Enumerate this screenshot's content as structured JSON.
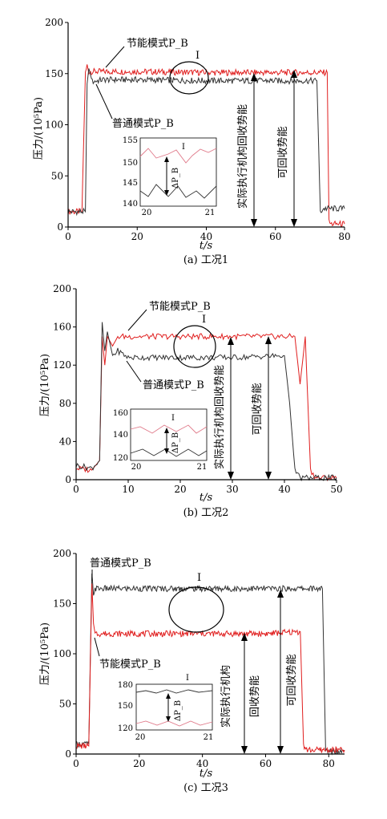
{
  "chart_data": [
    {
      "type": "line",
      "caption": "(a) 工况1",
      "ylabel": "压力/(10⁵Pa)",
      "xlabel": "t/s",
      "xlim": [
        0,
        80
      ],
      "ylim": [
        0,
        200
      ],
      "xticks": [
        "0",
        "20",
        "40",
        "60",
        "80"
      ],
      "yticks": [
        "0",
        "50",
        "100",
        "150",
        "200"
      ],
      "series": [
        {
          "name": "节能模式P_B",
          "color": "#e01e1e",
          "x": [
            0,
            4,
            5,
            5.5,
            6,
            8,
            20,
            40,
            60,
            70,
            75,
            75.5,
            76,
            80
          ],
          "y": [
            15,
            15,
            150,
            158,
            152,
            152,
            152,
            151,
            151,
            151,
            151,
            5,
            3,
            3
          ]
        },
        {
          "name": "普通模式P_B",
          "color": "#333333",
          "x": [
            0,
            5,
            5.5,
            6,
            7,
            10,
            20,
            40,
            60,
            72,
            73,
            74,
            80
          ],
          "y": [
            15,
            15,
            140,
            155,
            142,
            144,
            144,
            143,
            143,
            143,
            15,
            18,
            18
          ]
        }
      ],
      "inset": {
        "mark": "I",
        "label": "ΔP_B",
        "xticks": [
          "20",
          "21"
        ],
        "yticks": [
          "155",
          "150",
          "145",
          "140"
        ]
      },
      "annotations": {
        "mark": "I",
        "label1": "节能模式P_B",
        "label2": "普通模式P_B",
        "arrow1": "实际执行机构回收势能",
        "arrow2": "可回收势能"
      }
    },
    {
      "type": "line",
      "caption": "(b) 工况2",
      "ylabel": "压力/(10⁵Pa)",
      "xlabel": "t/s",
      "xlim": [
        0,
        50
      ],
      "ylim": [
        0,
        200
      ],
      "xticks": [
        "0",
        "10",
        "20",
        "30",
        "40",
        "50"
      ],
      "yticks": [
        "0",
        "40",
        "80",
        "120",
        "160",
        "200"
      ],
      "series": [
        {
          "name": "节能模式P_B",
          "color": "#e01e1e",
          "x": [
            0,
            3,
            4.5,
            5,
            5.5,
            6,
            7,
            8,
            10,
            20,
            30,
            40,
            42,
            43,
            44,
            45,
            46,
            50
          ],
          "y": [
            12,
            10,
            20,
            150,
            120,
            150,
            140,
            150,
            150,
            150,
            150,
            150,
            150,
            100,
            150,
            10,
            2,
            2
          ]
        },
        {
          "name": "普通模式P_B",
          "color": "#333333",
          "x": [
            0,
            3,
            4.5,
            5,
            5.5,
            6,
            7,
            8,
            10,
            20,
            30,
            40,
            41,
            42,
            43,
            50
          ],
          "y": [
            15,
            12,
            20,
            165,
            135,
            155,
            130,
            135,
            128,
            128,
            128,
            130,
            80,
            10,
            2,
            2
          ]
        }
      ],
      "inset": {
        "mark": "I",
        "label": "ΔP_B",
        "xticks": [
          "20",
          "21"
        ],
        "yticks": [
          "160",
          "140",
          "120"
        ]
      },
      "annotations": {
        "mark": "I",
        "label1": "节能模式P_B",
        "label2": "普通模式P_B",
        "arrow1": "实际执行机构回收势能",
        "arrow2": "可回收势能"
      }
    },
    {
      "type": "line",
      "caption": "(c) 工况3",
      "ylabel": "压力/(10⁵Pa)",
      "xlabel": "t/s",
      "xlim": [
        0,
        85
      ],
      "ylim": [
        0,
        200
      ],
      "xticks": [
        "0",
        "20",
        "40",
        "60",
        "80"
      ],
      "yticks": [
        "0",
        "50",
        "100",
        "150",
        "200"
      ],
      "series": [
        {
          "name": "普通模式P_B",
          "color": "#333333",
          "x": [
            0,
            4,
            5,
            5.5,
            6,
            7,
            10,
            20,
            40,
            60,
            78,
            79,
            80,
            85
          ],
          "y": [
            10,
            10,
            180,
            160,
            165,
            165,
            165,
            165,
            165,
            165,
            165,
            3,
            3,
            3
          ]
        },
        {
          "name": "节能模式P_B",
          "color": "#e01e1e",
          "x": [
            0,
            4,
            5,
            5.5,
            6,
            7,
            10,
            20,
            40,
            60,
            71,
            72,
            73,
            85
          ],
          "y": [
            8,
            8,
            170,
            130,
            120,
            120,
            120,
            120,
            120,
            120,
            122,
            8,
            4,
            4
          ]
        }
      ],
      "inset": {
        "mark": "I",
        "label": "ΔP_B",
        "xticks": [
          "20",
          "21"
        ],
        "yticks": [
          "180",
          "150",
          "120"
        ]
      },
      "annotations": {
        "mark": "I",
        "label1": "普通模式P_B",
        "label2": "节能模式P_B",
        "arrow1a": "实际执行机构",
        "arrow1b": "回收势能",
        "arrow2": "可回收势能"
      }
    }
  ]
}
